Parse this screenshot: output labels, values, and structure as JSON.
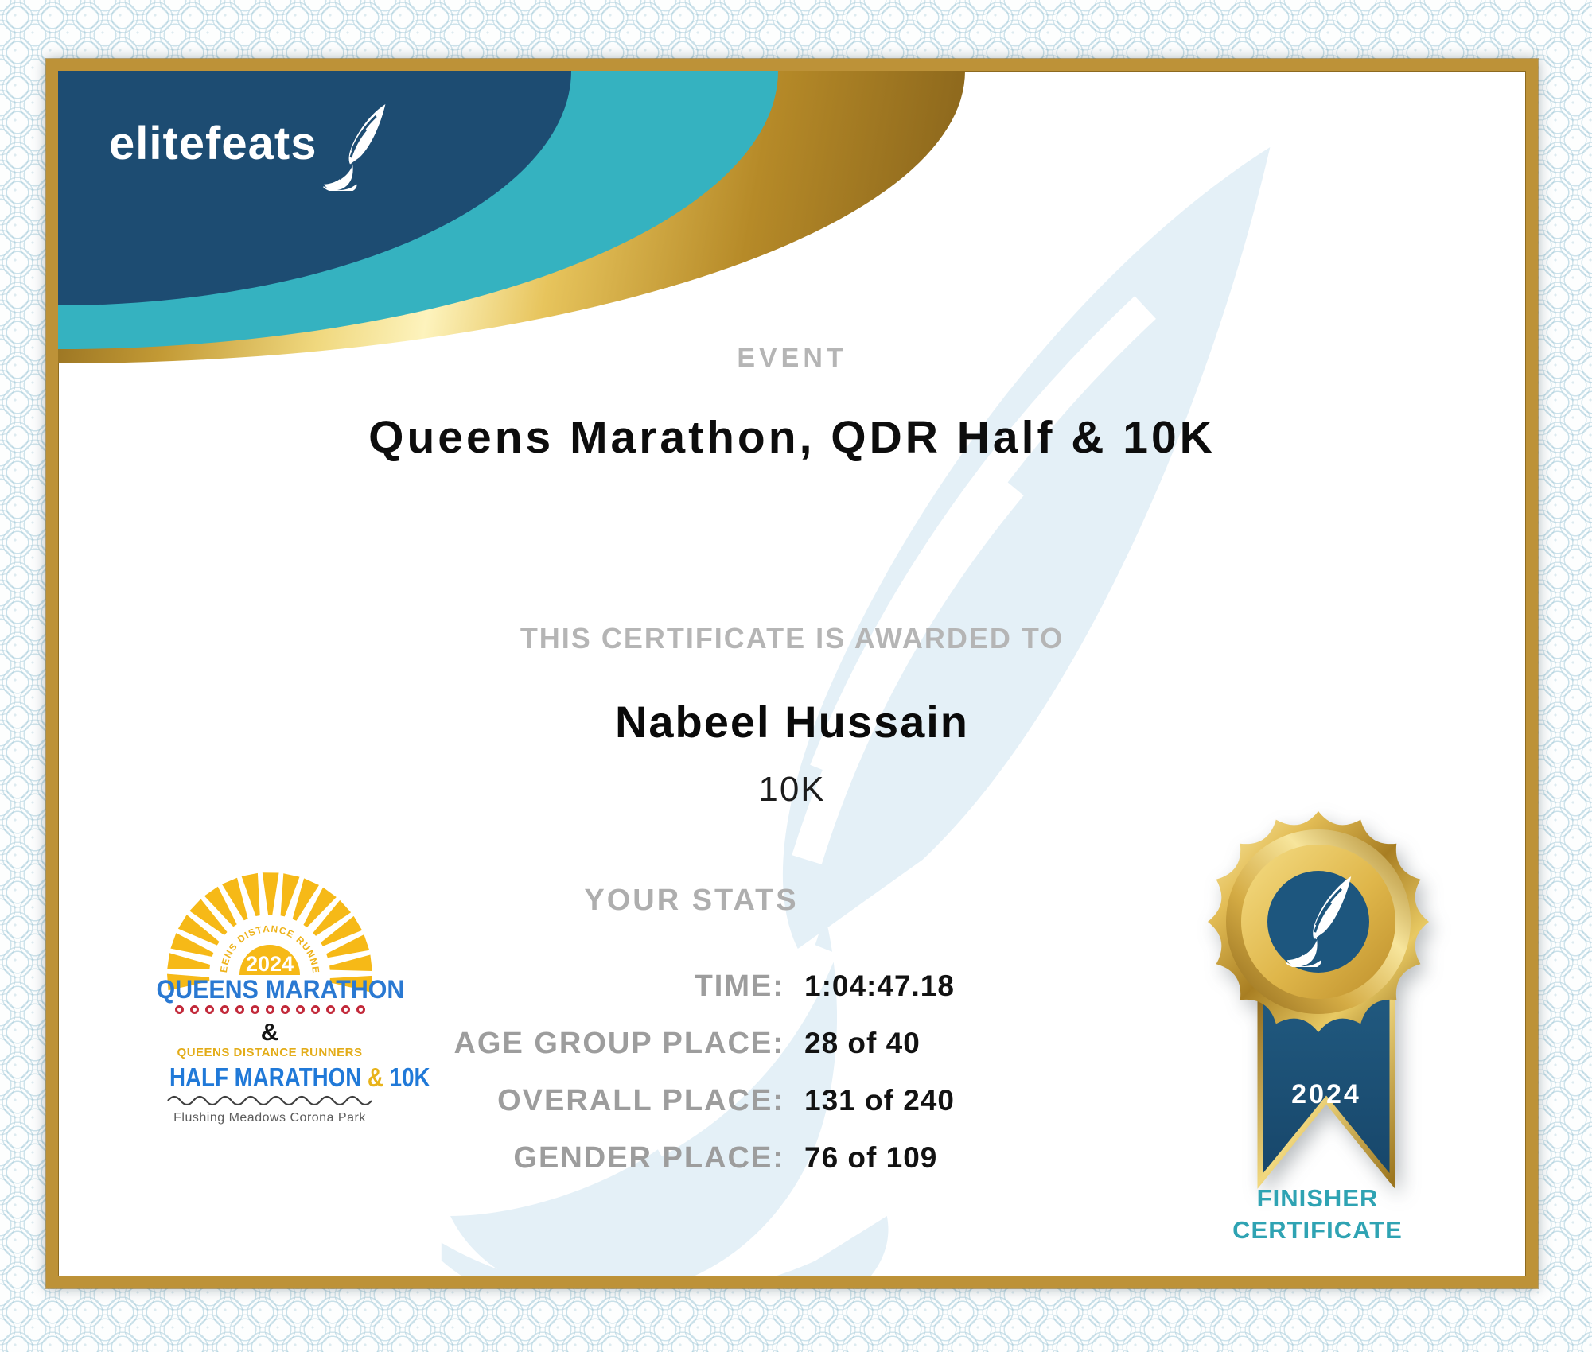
{
  "certificate": {
    "brand": {
      "logo_text": "elitefeats"
    },
    "event": {
      "label": "EVENT",
      "title": "Queens Marathon, QDR Half & 10K"
    },
    "award": {
      "intro": "THIS CERTIFICATE IS AWARDED TO",
      "recipient": "Nabeel Hussain",
      "division": "10K"
    },
    "stats": {
      "heading": "YOUR STATS",
      "rows": [
        {
          "label": "TIME:",
          "value": "1:04:47.18"
        },
        {
          "label": "AGE GROUP PLACE:",
          "value": "28 of 40"
        },
        {
          "label": "OVERALL PLACE:",
          "value": "131 of 240"
        },
        {
          "label": "GENDER PLACE:",
          "value": "76 of 109"
        }
      ]
    },
    "race_logo": {
      "year": "2024",
      "arc_text": "QUEENS DISTANCE RUNNERS",
      "title": "QUEENS MARATHON",
      "ampersand": "&",
      "club": "QUEENS DISTANCE RUNNERS",
      "event_left": "HALF MARATHON",
      "event_amp": "&",
      "event_right": "10K",
      "location": "Flushing Meadows Corona Park"
    },
    "badge": {
      "year": "2024",
      "caption": "FINISHER CERTIFICATE"
    },
    "colors": {
      "navy": "#1d4c72",
      "teal": "#35b2c0",
      "frame_gold": "#bd9238",
      "caption_teal": "#2fa3b3",
      "logo_blue": "#2a79d2",
      "logo_yellow": "#f6b917",
      "logo_red": "#c2293a"
    }
  }
}
